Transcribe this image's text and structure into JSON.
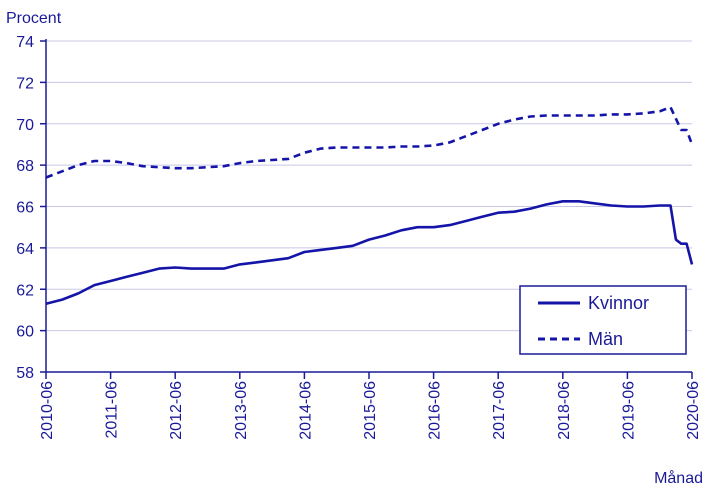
{
  "colors": {
    "text": "#1a1a99",
    "series": "#1414a8",
    "grid": "#c8c8e6",
    "axis": "#1a1a99"
  },
  "chart_data": {
    "type": "line",
    "title": "",
    "ylabel": "Procent",
    "xlabel": "Månad",
    "ylim": [
      58,
      74
    ],
    "yticks": [
      58,
      60,
      62,
      64,
      66,
      68,
      70,
      72,
      74
    ],
    "xlim": [
      "2010-06",
      "2020-06"
    ],
    "xticks": [
      "2010-06",
      "2011-06",
      "2012-06",
      "2013-06",
      "2014-06",
      "2015-06",
      "2016-06",
      "2017-06",
      "2018-06",
      "2019-06",
      "2020-06"
    ],
    "grid": true,
    "legend_position": "bottom-right",
    "series": [
      {
        "name": "Kvinnor",
        "style": "solid",
        "points": [
          [
            "2010-06",
            61.3
          ],
          [
            "2010-09",
            61.5
          ],
          [
            "2010-12",
            61.8
          ],
          [
            "2011-03",
            62.2
          ],
          [
            "2011-06",
            62.4
          ],
          [
            "2011-09",
            62.6
          ],
          [
            "2011-12",
            62.8
          ],
          [
            "2012-03",
            63.0
          ],
          [
            "2012-06",
            63.05
          ],
          [
            "2012-09",
            63.0
          ],
          [
            "2012-12",
            63.0
          ],
          [
            "2013-03",
            63.0
          ],
          [
            "2013-06",
            63.2
          ],
          [
            "2013-09",
            63.3
          ],
          [
            "2013-12",
            63.4
          ],
          [
            "2014-03",
            63.5
          ],
          [
            "2014-06",
            63.8
          ],
          [
            "2014-09",
            63.9
          ],
          [
            "2014-12",
            64.0
          ],
          [
            "2015-03",
            64.1
          ],
          [
            "2015-06",
            64.4
          ],
          [
            "2015-09",
            64.6
          ],
          [
            "2015-12",
            64.85
          ],
          [
            "2016-03",
            65.0
          ],
          [
            "2016-06",
            65.0
          ],
          [
            "2016-09",
            65.1
          ],
          [
            "2016-12",
            65.3
          ],
          [
            "2017-03",
            65.5
          ],
          [
            "2017-06",
            65.7
          ],
          [
            "2017-09",
            65.75
          ],
          [
            "2017-12",
            65.9
          ],
          [
            "2018-03",
            66.1
          ],
          [
            "2018-06",
            66.25
          ],
          [
            "2018-09",
            66.25
          ],
          [
            "2018-12",
            66.15
          ],
          [
            "2019-03",
            66.05
          ],
          [
            "2019-06",
            66.0
          ],
          [
            "2019-09",
            66.0
          ],
          [
            "2019-12",
            66.05
          ],
          [
            "2020-02",
            66.05
          ],
          [
            "2020-03",
            64.4
          ],
          [
            "2020-04",
            64.2
          ],
          [
            "2020-05",
            64.2
          ],
          [
            "2020-06",
            63.2
          ]
        ]
      },
      {
        "name": "Män",
        "style": "dashed",
        "points": [
          [
            "2010-06",
            67.4
          ],
          [
            "2010-09",
            67.7
          ],
          [
            "2010-12",
            68.0
          ],
          [
            "2011-03",
            68.2
          ],
          [
            "2011-06",
            68.2
          ],
          [
            "2011-09",
            68.1
          ],
          [
            "2011-12",
            67.95
          ],
          [
            "2012-03",
            67.9
          ],
          [
            "2012-06",
            67.85
          ],
          [
            "2012-09",
            67.85
          ],
          [
            "2012-12",
            67.9
          ],
          [
            "2013-03",
            67.95
          ],
          [
            "2013-06",
            68.1
          ],
          [
            "2013-09",
            68.2
          ],
          [
            "2013-12",
            68.25
          ],
          [
            "2014-03",
            68.3
          ],
          [
            "2014-06",
            68.6
          ],
          [
            "2014-09",
            68.8
          ],
          [
            "2014-12",
            68.85
          ],
          [
            "2015-03",
            68.85
          ],
          [
            "2015-06",
            68.85
          ],
          [
            "2015-09",
            68.85
          ],
          [
            "2015-12",
            68.9
          ],
          [
            "2016-03",
            68.9
          ],
          [
            "2016-06",
            68.95
          ],
          [
            "2016-09",
            69.1
          ],
          [
            "2016-12",
            69.4
          ],
          [
            "2017-03",
            69.7
          ],
          [
            "2017-06",
            70.0
          ],
          [
            "2017-09",
            70.2
          ],
          [
            "2017-12",
            70.35
          ],
          [
            "2018-03",
            70.4
          ],
          [
            "2018-06",
            70.4
          ],
          [
            "2018-09",
            70.4
          ],
          [
            "2018-12",
            70.4
          ],
          [
            "2019-03",
            70.45
          ],
          [
            "2019-06",
            70.45
          ],
          [
            "2019-09",
            70.5
          ],
          [
            "2019-12",
            70.6
          ],
          [
            "2020-02",
            70.8
          ],
          [
            "2020-04",
            69.7
          ],
          [
            "2020-05",
            69.7
          ],
          [
            "2020-06",
            69.0
          ]
        ]
      }
    ]
  }
}
